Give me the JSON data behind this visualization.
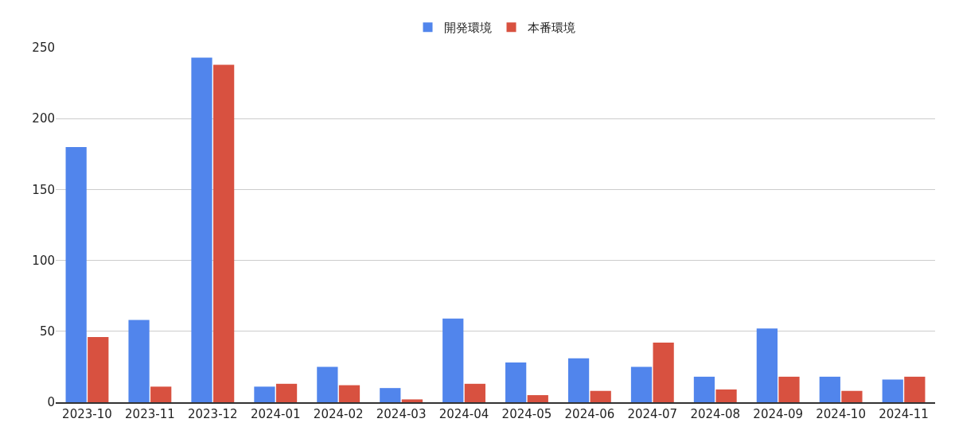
{
  "chart_data": {
    "type": "bar",
    "categories": [
      "2023-10",
      "2023-11",
      "2023-12",
      "2024-01",
      "2024-02",
      "2024-03",
      "2024-04",
      "2024-05",
      "2024-06",
      "2024-07",
      "2024-08",
      "2024-09",
      "2024-10",
      "2024-11"
    ],
    "series": [
      {
        "name": "開発環境",
        "color": "#5185ec",
        "values": [
          180,
          58,
          243,
          11,
          25,
          10,
          59,
          28,
          31,
          25,
          18,
          52,
          18,
          16
        ]
      },
      {
        "name": "本番環境",
        "color": "#d85140",
        "values": [
          46,
          11,
          238,
          13,
          12,
          2,
          13,
          5,
          8,
          42,
          9,
          18,
          8,
          18
        ]
      }
    ],
    "ylim": [
      0,
      250
    ],
    "yticks": [
      0,
      50,
      100,
      150,
      200,
      250
    ],
    "grid": "y",
    "legend": "top"
  }
}
